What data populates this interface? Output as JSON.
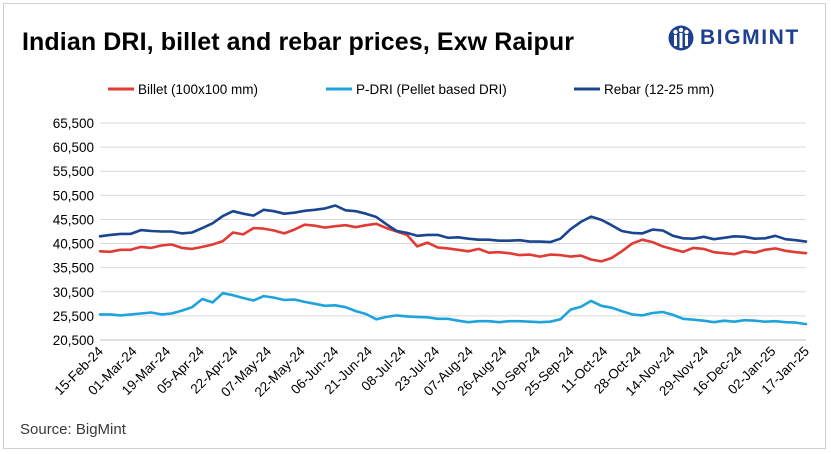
{
  "title": "Indian DRI, billet and rebar prices, Exw Raipur",
  "brand": "BIGMINT",
  "source": "Source: BigMint",
  "colors": {
    "billet": "#e03b35",
    "pdri": "#1fa3dc",
    "rebar": "#1a4590",
    "brand": "#1f3f8f"
  },
  "chart_data": {
    "type": "line",
    "title": "Indian DRI, billet and rebar prices, Exw Raipur",
    "legend_position": "top",
    "ylim": [
      20500,
      65500
    ],
    "ytick_labels": [
      "65,500",
      "60,500",
      "55,500",
      "50,500",
      "45,500",
      "40,500",
      "35,500",
      "30,500",
      "25,500",
      "20,500"
    ],
    "ytick_values": [
      65500,
      60500,
      55500,
      50500,
      45500,
      40500,
      35500,
      30500,
      25500,
      20500
    ],
    "xtick_labels": [
      "15-Feb-24",
      "01-Mar-24",
      "19-Mar-24",
      "05-Apr-24",
      "22-Apr-24",
      "07-May-24",
      "22-May-24",
      "06-Jun-24",
      "21-Jun-24",
      "08-Jul-24",
      "23-Jul-24",
      "07-Aug-24",
      "26-Aug-24",
      "10-Sep-24",
      "25-Sep-24",
      "11-Oct-24",
      "28-Oct-24",
      "14-Nov-24",
      "29-Nov-24",
      "16-Dec-24",
      "02-Jan-25",
      "17-Jan-25"
    ],
    "series": [
      {
        "name": "Billet (100x100 mm)",
        "key": "billet",
        "values": [
          38900,
          38800,
          39200,
          39200,
          39800,
          39600,
          40100,
          40300,
          39600,
          39400,
          39800,
          40300,
          41000,
          42800,
          42400,
          43700,
          43600,
          43200,
          42600,
          43400,
          44400,
          44200,
          43800,
          44100,
          44300,
          43900,
          44300,
          44600,
          43700,
          43000,
          42300,
          39900,
          40700,
          39700,
          39500,
          39200,
          38900,
          39400,
          38600,
          38700,
          38500,
          38100,
          38200,
          37800,
          38200,
          38100,
          37800,
          38000,
          37200,
          36800,
          37500,
          38900,
          40500,
          41300,
          40800,
          39900,
          39300,
          38800,
          39600,
          39400,
          38700,
          38500,
          38300,
          38900,
          38600,
          39200,
          39500,
          39000,
          38700,
          38500
        ]
      },
      {
        "name": "P-DRI (Pellet based DRI)",
        "key": "pdri",
        "values": [
          25800,
          25800,
          25600,
          25800,
          26000,
          26200,
          25800,
          26000,
          26600,
          27300,
          29000,
          28300,
          30200,
          29800,
          29200,
          28700,
          29600,
          29300,
          28800,
          28900,
          28400,
          28000,
          27600,
          27700,
          27300,
          26500,
          25900,
          24800,
          25300,
          25600,
          25400,
          25300,
          25200,
          24900,
          24900,
          24500,
          24200,
          24400,
          24400,
          24200,
          24400,
          24400,
          24300,
          24200,
          24300,
          24800,
          26800,
          27400,
          28600,
          27600,
          27200,
          26500,
          25800,
          25600,
          26100,
          26300,
          25700,
          24900,
          24700,
          24500,
          24200,
          24500,
          24300,
          24600,
          24500,
          24300,
          24400,
          24200,
          24100,
          23800
        ]
      },
      {
        "name": "Rebar (12-25 mm)",
        "key": "rebar",
        "values": [
          42000,
          42300,
          42500,
          42500,
          43300,
          43100,
          43000,
          43000,
          42600,
          42800,
          43700,
          44700,
          46200,
          47200,
          46700,
          46300,
          47500,
          47200,
          46700,
          46900,
          47300,
          47500,
          47800,
          48400,
          47400,
          47200,
          46700,
          46000,
          44500,
          43100,
          42700,
          42100,
          42300,
          42300,
          41700,
          41800,
          41500,
          41300,
          41300,
          41100,
          41100,
          41200,
          40900,
          40900,
          40800,
          41500,
          43500,
          45000,
          46100,
          45400,
          44300,
          43100,
          42700,
          42600,
          43400,
          43200,
          42100,
          41600,
          41500,
          41900,
          41400,
          41700,
          42000,
          41900,
          41500,
          41600,
          42100,
          41400,
          41200,
          40900
        ]
      }
    ]
  }
}
